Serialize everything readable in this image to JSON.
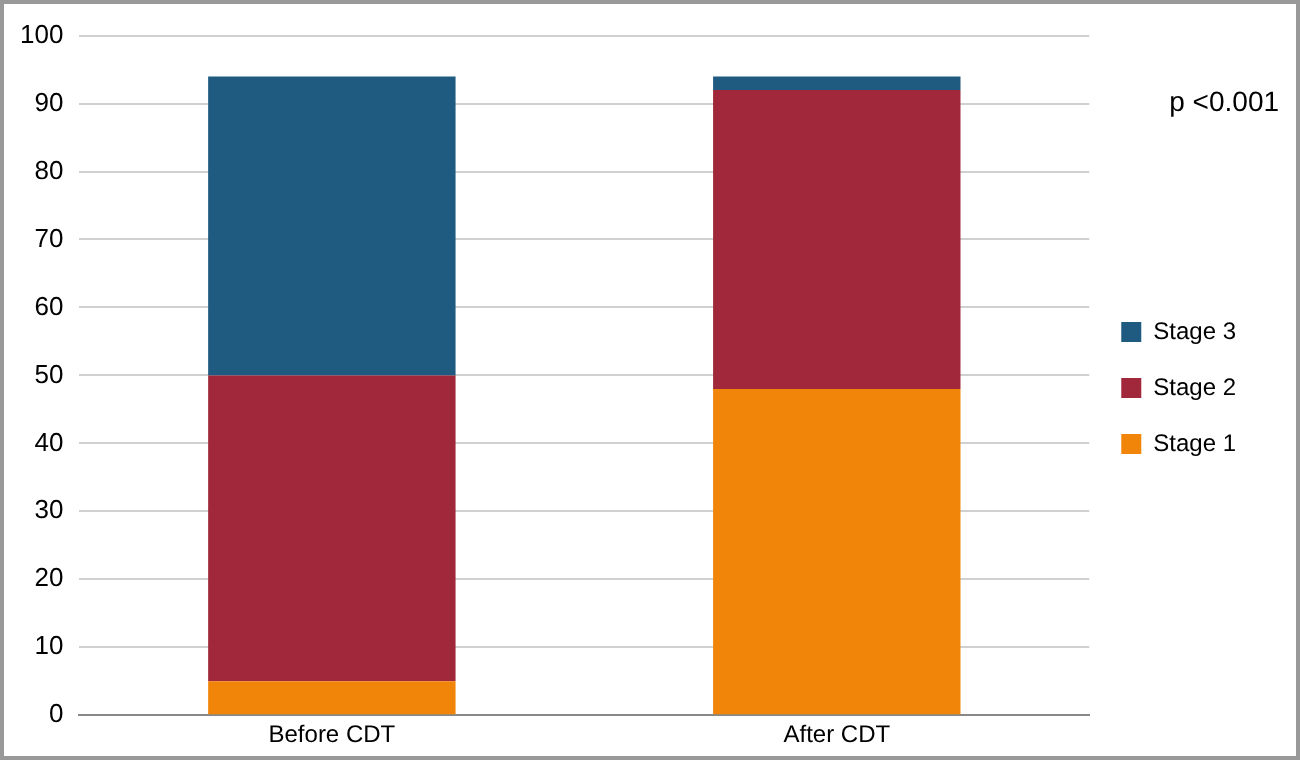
{
  "chart_data": {
    "type": "bar",
    "stacked": true,
    "categories": [
      "Before CDT",
      "After CDT"
    ],
    "series": [
      {
        "name": "Stage 1",
        "color": "#f0850a",
        "values": [
          5,
          48
        ]
      },
      {
        "name": "Stage 2",
        "color": "#a0283a",
        "values": [
          45,
          44
        ]
      },
      {
        "name": "Stage 3",
        "color": "#1f5a80",
        "values": [
          44,
          2
        ]
      }
    ],
    "ylim": [
      0,
      100
    ],
    "yticks": [
      0,
      10,
      20,
      30,
      40,
      50,
      60,
      70,
      80,
      90,
      100
    ],
    "grid": "y",
    "legend": "right",
    "annotations": [
      "p <0.001"
    ]
  }
}
